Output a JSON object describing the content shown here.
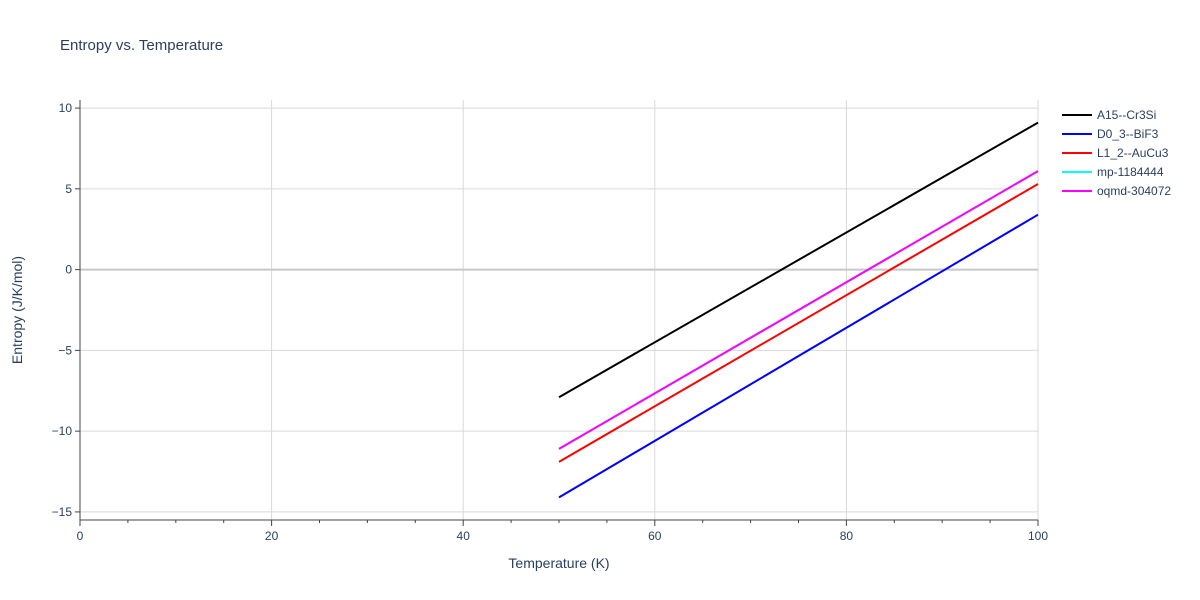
{
  "chart_data": {
    "type": "line",
    "title": "Entropy vs. Temperature",
    "xlabel": "Temperature (K)",
    "ylabel": "Entropy (J/K/mol)",
    "xlim": [
      0,
      100
    ],
    "ylim": [
      -15.5,
      10.5
    ],
    "x_ticks": [
      0,
      20,
      40,
      60,
      80,
      100
    ],
    "x_tick_labels": [
      "0",
      "20",
      "40",
      "60",
      "80",
      "100"
    ],
    "y_ticks": [
      -15,
      -10,
      -5,
      0,
      5,
      10
    ],
    "y_tick_labels": [
      "−15",
      "−10",
      "−5",
      "0",
      "5",
      "10"
    ],
    "grid": true,
    "legend_position": "right",
    "series": [
      {
        "name": "A15--Cr3Si",
        "color": "#000000",
        "x": [
          50,
          100
        ],
        "y": [
          -7.9,
          9.1
        ]
      },
      {
        "name": "D0_3--BiF3",
        "color": "#0000ff",
        "x": [
          50,
          100
        ],
        "y": [
          -14.1,
          3.4
        ]
      },
      {
        "name": "L1_2--AuCu3",
        "color": "#ff0000",
        "x": [
          50,
          100
        ],
        "y": [
          -11.9,
          5.3
        ]
      },
      {
        "name": "mp-1184444",
        "color": "#00ffff",
        "x": [
          50,
          100
        ],
        "y": [
          -11.1,
          6.1
        ]
      },
      {
        "name": "oqmd-304072",
        "color": "#ff00ff",
        "x": [
          50,
          100
        ],
        "y": [
          -11.1,
          6.1
        ]
      }
    ]
  }
}
